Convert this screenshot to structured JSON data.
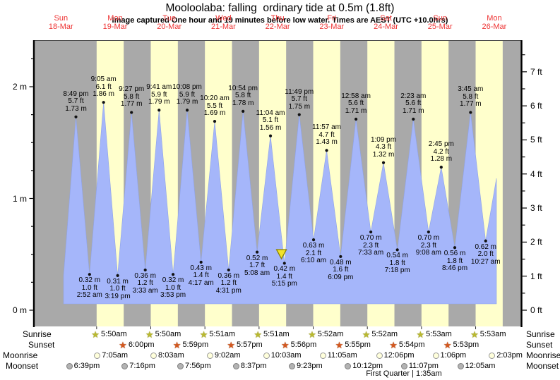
{
  "title": "Mooloolaba: falling  ordinary tide at 0.5m (1.8ft)",
  "subtitle": "Image captured One hour and 19 minutes before low water. Times are AEST (UTC +10.0hrs)",
  "days": [
    {
      "name": "Sun",
      "date": "18-Mar"
    },
    {
      "name": "Mon",
      "date": "19-Mar"
    },
    {
      "name": "Tue",
      "date": "20-Mar"
    },
    {
      "name": "Wed",
      "date": "21-Mar"
    },
    {
      "name": "Thu",
      "date": "22-Mar"
    },
    {
      "name": "Fri",
      "date": "23-Mar"
    },
    {
      "name": "Sat",
      "date": "24-Mar"
    },
    {
      "name": "Sun",
      "date": "25-Mar"
    },
    {
      "name": "Mon",
      "date": "26-Mar"
    }
  ],
  "axes": {
    "left_unit": "m",
    "left_ticks": [
      "0 m",
      "1 m",
      "2 m"
    ],
    "right_unit": "ft",
    "right_ticks": [
      "0 ft",
      "1 ft",
      "2 ft",
      "3 ft",
      "4 ft",
      "5 ft",
      "6 ft",
      "7 ft"
    ],
    "ylim_m": [
      0,
      2.4
    ]
  },
  "chart_data": {
    "type": "area",
    "title": "Tide height over time",
    "x_unit": "days (18-Mar to 26-Mar)",
    "ylabel_left": "metres",
    "ylabel_right": "feet",
    "high_tides": [
      {
        "day": 0,
        "hour": 20.8167,
        "time": "8:49 pm",
        "ft": "5.7 ft",
        "m": "1.73 m",
        "height_m": 1.73
      },
      {
        "day": 1,
        "hour": 9.0833,
        "time": "9:05 am",
        "ft": "6.1 ft",
        "m": "1.86 m",
        "height_m": 1.86
      },
      {
        "day": 1,
        "hour": 21.45,
        "time": "9:27 pm",
        "ft": "5.8 ft",
        "m": "1.77 m",
        "height_m": 1.77
      },
      {
        "day": 2,
        "hour": 9.6833,
        "time": "9:41 am",
        "ft": "5.9 ft",
        "m": "1.79 m",
        "height_m": 1.79
      },
      {
        "day": 2,
        "hour": 22.1333,
        "time": "10:08 pm",
        "ft": "5.9 ft",
        "m": "1.79 m",
        "height_m": 1.79
      },
      {
        "day": 3,
        "hour": 10.3333,
        "time": "10:20 am",
        "ft": "5.5 ft",
        "m": "1.69 m",
        "height_m": 1.69
      },
      {
        "day": 3,
        "hour": 22.9,
        "time": "10:54 pm",
        "ft": "5.8 ft",
        "m": "1.78 m",
        "height_m": 1.78
      },
      {
        "day": 4,
        "hour": 11.0667,
        "time": "11:04 am",
        "ft": "5.1 ft",
        "m": "1.56 m",
        "height_m": 1.56
      },
      {
        "day": 4,
        "hour": 23.8167,
        "time": "11:49 pm",
        "ft": "5.7 ft",
        "m": "1.75 m",
        "height_m": 1.75
      },
      {
        "day": 5,
        "hour": 11.95,
        "time": "11:57 am",
        "ft": "4.7 ft",
        "m": "1.43 m",
        "height_m": 1.43
      },
      {
        "day": 6,
        "hour": 0.9667,
        "time": "12:58 am",
        "ft": "5.6 ft",
        "m": "1.71 m",
        "height_m": 1.71
      },
      {
        "day": 6,
        "hour": 13.15,
        "time": "1:09 pm",
        "ft": "4.3 ft",
        "m": "1.32 m",
        "height_m": 1.32
      },
      {
        "day": 7,
        "hour": 2.3833,
        "time": "2:23 am",
        "ft": "5.6 ft",
        "m": "1.71 m",
        "height_m": 1.71
      },
      {
        "day": 7,
        "hour": 14.75,
        "time": "2:45 pm",
        "ft": "4.2 ft",
        "m": "1.28 m",
        "height_m": 1.28
      },
      {
        "day": 8,
        "hour": 3.75,
        "time": "3:45 am",
        "ft": "5.8 ft",
        "m": "1.77 m",
        "height_m": 1.77
      }
    ],
    "low_tides": [
      {
        "day": 1,
        "hour": 2.8667,
        "time": "2:52 am",
        "ft": "1.0 ft",
        "m": "0.32 m",
        "height_m": 0.32
      },
      {
        "day": 1,
        "hour": 15.3167,
        "time": "3:19 pm",
        "ft": "1.0 ft",
        "m": "0.31 m",
        "height_m": 0.31
      },
      {
        "day": 2,
        "hour": 3.55,
        "time": "3:33 am",
        "ft": "1.2 ft",
        "m": "0.36 m",
        "height_m": 0.36
      },
      {
        "day": 2,
        "hour": 15.8833,
        "time": "3:53 pm",
        "ft": "1.0 ft",
        "m": "0.32 m",
        "height_m": 0.32
      },
      {
        "day": 3,
        "hour": 4.2833,
        "time": "4:17 am",
        "ft": "1.4 ft",
        "m": "0.43 m",
        "height_m": 0.43
      },
      {
        "day": 3,
        "hour": 16.5167,
        "time": "4:31 pm",
        "ft": "1.2 ft",
        "m": "0.36 m",
        "height_m": 0.36
      },
      {
        "day": 4,
        "hour": 5.1333,
        "time": "5:08 am",
        "ft": "1.7 ft",
        "m": "0.52 m",
        "height_m": 0.52
      },
      {
        "day": 4,
        "hour": 17.25,
        "time": "5:15 pm",
        "ft": "1.4 ft",
        "m": "0.42 m",
        "height_m": 0.42
      },
      {
        "day": 5,
        "hour": 6.1667,
        "time": "6:10 am",
        "ft": "2.1 ft",
        "m": "0.63 m",
        "height_m": 0.63
      },
      {
        "day": 5,
        "hour": 18.15,
        "time": "6:09 pm",
        "ft": "1.6 ft",
        "m": "0.48 m",
        "height_m": 0.48
      },
      {
        "day": 6,
        "hour": 7.55,
        "time": "7:33 am",
        "ft": "2.3 ft",
        "m": "0.70 m",
        "height_m": 0.7
      },
      {
        "day": 6,
        "hour": 19.3,
        "time": "7:18 pm",
        "ft": "1.8 ft",
        "m": "0.54 m",
        "height_m": 0.54
      },
      {
        "day": 7,
        "hour": 9.1333,
        "time": "9:08 am",
        "ft": "2.3 ft",
        "m": "0.70 m",
        "height_m": 0.7
      },
      {
        "day": 7,
        "hour": 20.7667,
        "time": "8:46 pm",
        "ft": "1.8 ft",
        "m": "0.56 m",
        "height_m": 0.56
      },
      {
        "day": 8,
        "hour": 10.45,
        "time": "10:27 am",
        "ft": "2.0 ft",
        "m": "0.62 m",
        "height_m": 0.62
      }
    ],
    "current_marker": {
      "day": 4,
      "hour": 15.93,
      "note": "one hour and 19 minutes before low water"
    }
  },
  "astro": {
    "rows": [
      {
        "key": "sunrise",
        "label": "Sunrise",
        "marker": "sunrise-star",
        "entries": [
          {
            "day": 1,
            "hour": 5.833,
            "time": "5:50am"
          },
          {
            "day": 2,
            "hour": 5.833,
            "time": "5:50am"
          },
          {
            "day": 3,
            "hour": 5.85,
            "time": "5:51am"
          },
          {
            "day": 4,
            "hour": 5.85,
            "time": "5:51am"
          },
          {
            "day": 5,
            "hour": 5.867,
            "time": "5:52am"
          },
          {
            "day": 6,
            "hour": 5.867,
            "time": "5:52am"
          },
          {
            "day": 7,
            "hour": 5.883,
            "time": "5:53am"
          },
          {
            "day": 8,
            "hour": 5.883,
            "time": "5:53am"
          }
        ]
      },
      {
        "key": "sunset",
        "label": "Sunset",
        "marker": "sunset-star",
        "entries": [
          {
            "day": 1,
            "hour": 18.0,
            "time": "6:00pm"
          },
          {
            "day": 2,
            "hour": 17.983,
            "time": "5:59pm"
          },
          {
            "day": 3,
            "hour": 17.95,
            "time": "5:57pm"
          },
          {
            "day": 4,
            "hour": 17.933,
            "time": "5:56pm"
          },
          {
            "day": 5,
            "hour": 17.917,
            "time": "5:55pm"
          },
          {
            "day": 6,
            "hour": 17.9,
            "time": "5:54pm"
          },
          {
            "day": 7,
            "hour": 17.883,
            "time": "5:53pm"
          }
        ]
      },
      {
        "key": "moonrise",
        "label": "Moonrise",
        "marker": "moonrise-circle",
        "entries": [
          {
            "day": 1,
            "hour": 7.083,
            "time": "7:05am"
          },
          {
            "day": 2,
            "hour": 8.05,
            "time": "8:03am"
          },
          {
            "day": 3,
            "hour": 9.033,
            "time": "9:02am"
          },
          {
            "day": 4,
            "hour": 10.05,
            "time": "10:03am"
          },
          {
            "day": 5,
            "hour": 11.083,
            "time": "11:05am"
          },
          {
            "day": 6,
            "hour": 12.1,
            "time": "12:06pm"
          },
          {
            "day": 7,
            "hour": 13.1,
            "time": "1:06pm"
          },
          {
            "day": 8,
            "hour": 14.05,
            "time": "2:03pm"
          }
        ]
      },
      {
        "key": "moonset",
        "label": "Moonset",
        "marker": "moonset-circle",
        "entries": [
          {
            "day": 0,
            "hour": 18.65,
            "time": "6:39pm"
          },
          {
            "day": 1,
            "hour": 19.267,
            "time": "7:16pm"
          },
          {
            "day": 2,
            "hour": 19.933,
            "time": "7:56pm"
          },
          {
            "day": 3,
            "hour": 20.617,
            "time": "8:37pm"
          },
          {
            "day": 4,
            "hour": 21.383,
            "time": "9:23pm"
          },
          {
            "day": 5,
            "hour": 22.2,
            "time": "10:12pm"
          },
          {
            "day": 6,
            "hour": 23.117,
            "time": "11:07pm"
          },
          {
            "day": 8,
            "hour": 0.083,
            "time": "12:05am"
          }
        ]
      }
    ],
    "moon_phase": "First Quarter | 1:35am"
  },
  "colors": {
    "night_band": "#a9a9a9",
    "day_band": "#ffffcc",
    "tide_fill": "#a5b6fa",
    "tide_edge": "#8fa3e8",
    "day_label": "#ee3333",
    "marker_triangle": "#f2e32a",
    "marker_triangle_edge": "#8a8000",
    "axis": "#000000"
  }
}
